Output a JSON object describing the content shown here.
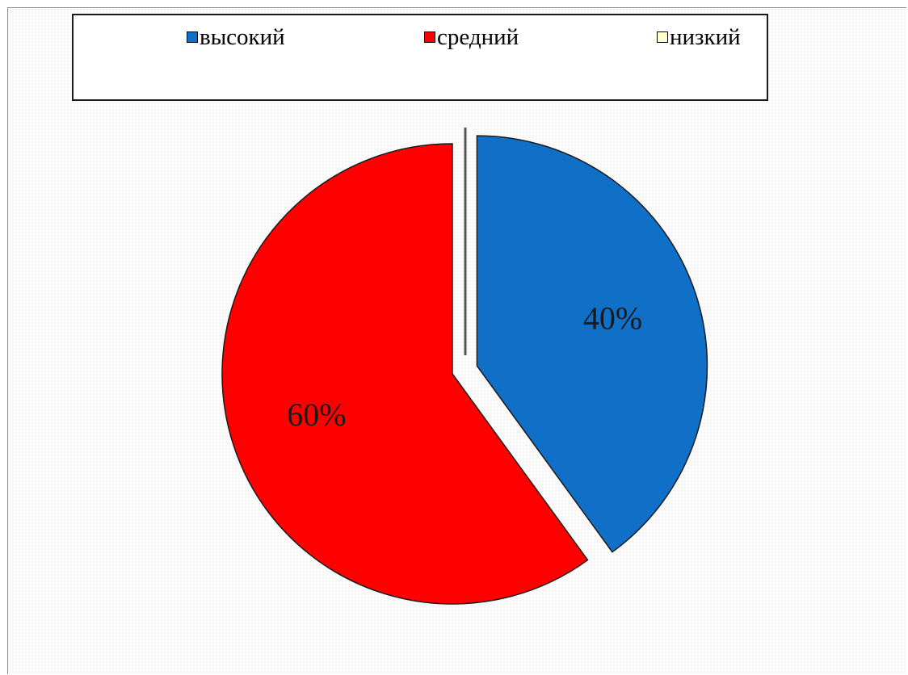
{
  "chart_data": {
    "type": "pie",
    "title": "",
    "categories": [
      "высокий",
      "средний",
      "низкий"
    ],
    "values": [
      40,
      60,
      0
    ],
    "unit": "%",
    "data_labels": [
      "40%",
      "60%",
      ""
    ],
    "colors": [
      "#1070c8",
      "#ff0000",
      "#ffffcc"
    ],
    "exploded_slice": "высокий",
    "legend_position": "top",
    "start_angle": "12 o'clock, clockwise"
  }
}
